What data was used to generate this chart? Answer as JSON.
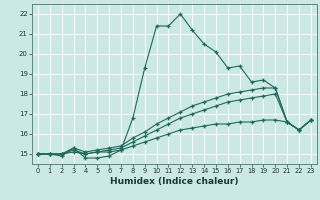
{
  "xlabel": "Humidex (Indice chaleur)",
  "xlim": [
    -0.5,
    23.5
  ],
  "ylim": [
    14.5,
    22.5
  ],
  "yticks": [
    15,
    16,
    17,
    18,
    19,
    20,
    21,
    22
  ],
  "xticks": [
    0,
    1,
    2,
    3,
    4,
    5,
    6,
    7,
    8,
    9,
    10,
    11,
    12,
    13,
    14,
    15,
    16,
    17,
    18,
    19,
    20,
    21,
    22,
    23
  ],
  "bg_color": "#cce8e4",
  "line_color": "#1a6b5a",
  "grid_color": "#ffffff",
  "lines": [
    {
      "x": [
        0,
        1,
        2,
        3,
        4,
        5,
        6,
        7,
        8,
        9,
        10,
        11,
        12,
        13,
        14,
        15,
        16,
        17,
        18,
        19,
        20,
        21,
        22,
        23
      ],
      "y": [
        15.0,
        15.0,
        14.9,
        15.3,
        14.8,
        14.8,
        14.9,
        15.2,
        16.8,
        19.3,
        21.4,
        21.4,
        22.0,
        21.2,
        20.5,
        20.1,
        19.3,
        19.4,
        18.6,
        18.7,
        18.3,
        16.6,
        16.2,
        16.7
      ]
    },
    {
      "x": [
        0,
        1,
        2,
        3,
        4,
        5,
        6,
        7,
        8,
        9,
        10,
        11,
        12,
        13,
        14,
        15,
        16,
        17,
        18,
        19,
        20,
        21,
        22,
        23
      ],
      "y": [
        15.0,
        15.0,
        15.0,
        15.3,
        15.1,
        15.2,
        15.3,
        15.4,
        15.8,
        16.1,
        16.5,
        16.8,
        17.1,
        17.4,
        17.6,
        17.8,
        18.0,
        18.1,
        18.2,
        18.3,
        18.3,
        16.6,
        16.2,
        16.7
      ]
    },
    {
      "x": [
        0,
        1,
        2,
        3,
        4,
        5,
        6,
        7,
        8,
        9,
        10,
        11,
        12,
        13,
        14,
        15,
        16,
        17,
        18,
        19,
        20,
        21,
        22,
        23
      ],
      "y": [
        15.0,
        15.0,
        15.0,
        15.2,
        15.0,
        15.1,
        15.2,
        15.3,
        15.6,
        15.9,
        16.2,
        16.5,
        16.8,
        17.0,
        17.2,
        17.4,
        17.6,
        17.7,
        17.8,
        17.9,
        18.0,
        16.6,
        16.2,
        16.7
      ]
    },
    {
      "x": [
        0,
        1,
        2,
        3,
        4,
        5,
        6,
        7,
        8,
        9,
        10,
        11,
        12,
        13,
        14,
        15,
        16,
        17,
        18,
        19,
        20,
        21,
        22,
        23
      ],
      "y": [
        15.0,
        15.0,
        15.0,
        15.1,
        15.0,
        15.1,
        15.1,
        15.2,
        15.4,
        15.6,
        15.8,
        16.0,
        16.2,
        16.3,
        16.4,
        16.5,
        16.5,
        16.6,
        16.6,
        16.7,
        16.7,
        16.6,
        16.2,
        16.7
      ]
    }
  ]
}
